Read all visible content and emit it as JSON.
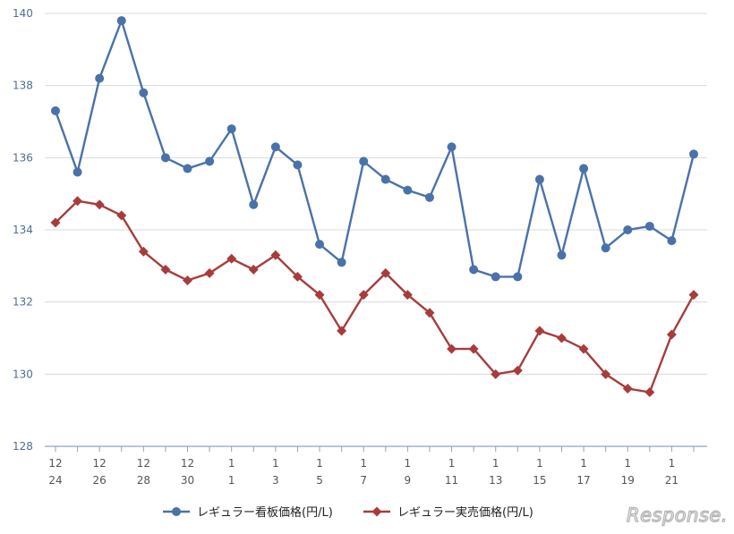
{
  "chart_data": {
    "type": "line",
    "categories": [
      [
        "12",
        "24"
      ],
      [
        "",
        ""
      ],
      [
        "12",
        "26"
      ],
      [
        "",
        ""
      ],
      [
        "12",
        "28"
      ],
      [
        "",
        ""
      ],
      [
        "12",
        "30"
      ],
      [
        "",
        ""
      ],
      [
        "1",
        "1"
      ],
      [
        "",
        ""
      ],
      [
        "1",
        "3"
      ],
      [
        "",
        ""
      ],
      [
        "1",
        "5"
      ],
      [
        "",
        ""
      ],
      [
        "1",
        "7"
      ],
      [
        "",
        ""
      ],
      [
        "1",
        "9"
      ],
      [
        "",
        ""
      ],
      [
        "1",
        "11"
      ],
      [
        "",
        ""
      ],
      [
        "1",
        "13"
      ],
      [
        "",
        ""
      ],
      [
        "1",
        "15"
      ],
      [
        "",
        ""
      ],
      [
        "1",
        "17"
      ],
      [
        "",
        ""
      ],
      [
        "1",
        "19"
      ],
      [
        "",
        ""
      ],
      [
        "1",
        "21"
      ],
      [
        "",
        ""
      ]
    ],
    "series": [
      {
        "name": "レギュラー看板価格(円/L)",
        "color": "#4a72a8",
        "marker": "circle",
        "values": [
          137.3,
          135.6,
          138.2,
          139.8,
          137.8,
          136.0,
          135.7,
          135.9,
          136.8,
          134.7,
          136.3,
          135.8,
          133.6,
          133.1,
          135.9,
          135.4,
          135.1,
          134.9,
          136.3,
          132.9,
          132.7,
          132.7,
          135.4,
          133.3,
          135.7,
          133.5,
          134.0,
          134.1,
          133.7,
          136.1
        ]
      },
      {
        "name": "レギュラー実売価格(円/L)",
        "color": "#a83c3c",
        "marker": "diamond",
        "values": [
          134.2,
          134.8,
          134.7,
          134.4,
          133.4,
          132.9,
          132.6,
          132.8,
          133.2,
          132.9,
          133.3,
          132.7,
          132.2,
          131.2,
          132.2,
          132.8,
          132.2,
          131.7,
          130.7,
          130.7,
          130.0,
          130.1,
          131.2,
          131.0,
          130.7,
          130.0,
          129.6,
          129.5,
          131.1,
          132.2
        ]
      }
    ],
    "ylim": [
      128,
      140
    ],
    "yticks": [
      "128",
      "130",
      "132",
      "134",
      "136",
      "138",
      "140"
    ],
    "grid": true,
    "legend": "bottom-center"
  },
  "watermark": "Response."
}
